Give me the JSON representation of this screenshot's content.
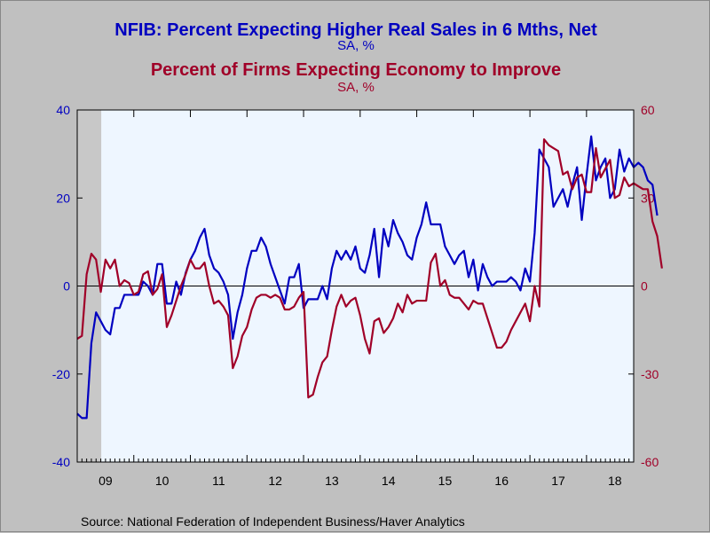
{
  "chart_data": {
    "type": "line",
    "title": "NFIB: Percent Expecting Higher Real Sales in 6 Mths, Net",
    "title_units": "SA, %",
    "subtitle": "Percent of Firms Expecting Economy to Improve",
    "subtitle_units": "SA, %",
    "source": "Source:  National Federation of Independent Business/Haver Analytics",
    "x_categories": [
      "09",
      "10",
      "11",
      "12",
      "13",
      "14",
      "15",
      "16",
      "17",
      "18"
    ],
    "x_range": [
      2009.0,
      2018.8333
    ],
    "recession_shading": [
      2009.0,
      2009.4167
    ],
    "y_left": {
      "range": [
        -40,
        40
      ],
      "ticks": [
        "-40",
        "-20",
        "0",
        "20",
        "40"
      ]
    },
    "y_right": {
      "range": [
        -60,
        60
      ],
      "ticks": [
        "-60",
        "-30",
        "0",
        "30",
        "60"
      ]
    },
    "grid": false,
    "zero_line": true,
    "colors": {
      "blue": "#0000c0",
      "red": "#a00028",
      "plot_bg": "#eef6ff",
      "recession": "#c8c8c8",
      "page_bg": "#c0c0c0"
    },
    "series": [
      {
        "axis": "left",
        "color": "#0000c0",
        "start": 2009.0,
        "step": 0.08333,
        "values": [
          -29,
          -30,
          -30,
          -13,
          -6,
          -8,
          -10,
          -11,
          -5,
          -5,
          -2,
          -2,
          -2,
          -2,
          1,
          0,
          -2,
          5,
          5,
          -4,
          -4,
          1,
          -2,
          3,
          6,
          8,
          11,
          13,
          7,
          4,
          3,
          1,
          -2,
          -12,
          -6,
          -2,
          4,
          8,
          8,
          11,
          9,
          5,
          2,
          -1,
          -4,
          2,
          2,
          5,
          -5,
          -3,
          -3,
          -3,
          0,
          -3,
          4,
          8,
          6,
          8,
          6,
          9,
          4,
          3,
          7,
          13,
          2,
          13,
          9,
          15,
          12,
          10,
          7,
          6,
          11,
          14,
          19,
          14,
          14,
          14,
          9,
          7,
          5,
          7,
          8,
          2,
          6,
          -1,
          5,
          2,
          0,
          1,
          1,
          1,
          2,
          1,
          -1,
          4,
          1,
          12,
          31,
          29,
          27,
          18,
          20,
          22,
          18,
          23,
          27,
          15,
          25,
          34,
          24,
          27,
          29,
          20,
          22,
          31,
          26,
          29,
          27,
          28,
          27,
          24,
          23,
          16
        ]
      },
      {
        "axis": "right",
        "color": "#a00028",
        "start": 2009.0,
        "step": 0.08333,
        "values": [
          -18,
          -17,
          4,
          11,
          9,
          -2,
          9,
          6,
          9,
          0,
          2,
          1,
          -3,
          -2,
          4,
          5,
          -3,
          -1,
          4,
          -14,
          -10,
          -5,
          0,
          4,
          9,
          6,
          6,
          8,
          0,
          -6,
          -5,
          -7,
          -10,
          -28,
          -24,
          -17,
          -14,
          -8,
          -4,
          -3,
          -3,
          -4,
          -3,
          -4,
          -8,
          -8,
          -7,
          -4,
          -2,
          -38,
          -37,
          -31,
          -26,
          -24,
          -15,
          -7,
          -3,
          -7,
          -5,
          -4,
          -10,
          -18,
          -23,
          -12,
          -11,
          -16,
          -14,
          -11,
          -6,
          -9,
          -3,
          -6,
          -5,
          -5,
          -5,
          8,
          11,
          0,
          2,
          -3,
          -4,
          -4,
          -6,
          -8,
          -5,
          -6,
          -6,
          -11,
          -16,
          -21,
          -21,
          -19,
          -15,
          -12,
          -9,
          -6,
          -12,
          0,
          -7,
          50,
          48,
          47,
          46,
          38,
          39,
          33,
          37,
          38,
          32,
          32,
          47,
          37,
          40,
          43,
          30,
          31,
          37,
          34,
          35,
          34,
          33,
          33,
          22,
          17,
          6
        ]
      }
    ]
  }
}
